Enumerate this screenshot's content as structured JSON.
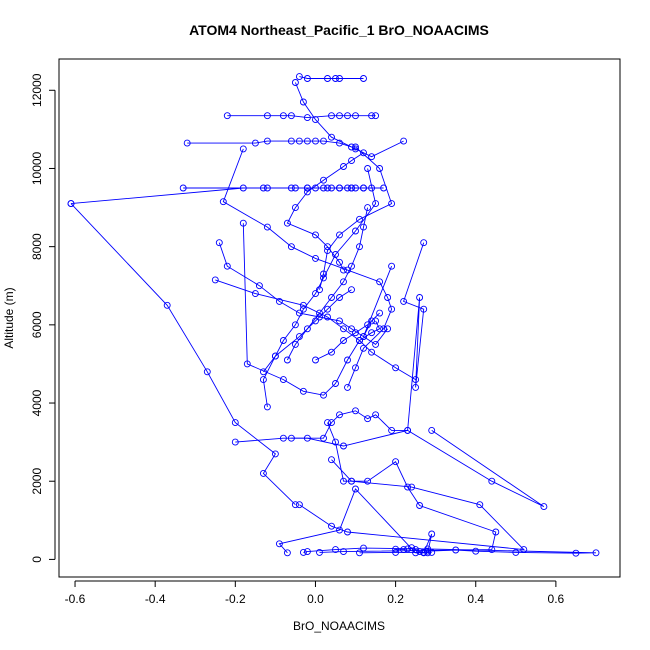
{
  "chart_data": {
    "type": "line",
    "title": "ATOM4 Northeast_Pacific_1 BrO_NOAACIMS",
    "xlabel": "BrO_NOAACIMS",
    "ylabel": "Altitude (m)",
    "xlim": [
      -0.64,
      0.76
    ],
    "ylim": [
      -450,
      12800
    ],
    "xticks": [
      -0.6,
      -0.4,
      -0.2,
      0.0,
      0.2,
      0.4,
      0.6
    ],
    "xtick_labels": [
      "-0.6",
      "-0.4",
      "-0.2",
      "0.0",
      "0.2",
      "0.4",
      "0.6"
    ],
    "yticks": [
      0,
      2000,
      4000,
      6000,
      8000,
      10000,
      12000
    ],
    "ytick_labels": [
      "0",
      "2000",
      "4000",
      "6000",
      "8000",
      "10000",
      "12000"
    ],
    "grid": false,
    "legend": "none",
    "series_color": "#0000ff",
    "series": [
      {
        "x": [
          -0.03,
          -0.02,
          0.05,
          0.12,
          0.28,
          0.7,
          0.65,
          0.5,
          0.4,
          0.35,
          0.28
        ],
        "y": [
          180,
          200,
          250,
          290,
          270,
          170,
          160,
          180,
          210,
          240,
          210
        ]
      },
      {
        "x": [
          0.11,
          0.2,
          0.29,
          0.27,
          0.27,
          0.26,
          0.25,
          0.24,
          0.23,
          0.22,
          0.2
        ],
        "y": [
          170,
          180,
          180,
          180,
          180,
          200,
          250,
          300,
          270,
          250,
          260
        ]
      },
      {
        "x": [
          -0.07,
          -0.09,
          0.06,
          0.1,
          0.25,
          0.27,
          0.29,
          0.28
        ],
        "y": [
          170,
          400,
          750,
          1800,
          170,
          170,
          650,
          170
        ]
      },
      {
        "x": [
          0.01,
          0.07,
          0.44,
          0.45,
          0.26,
          0.23,
          0.2,
          0.13,
          0.09,
          0.07,
          0.05,
          0.03
        ],
        "y": [
          180,
          200,
          250,
          700,
          1380,
          1850,
          2500,
          2000,
          2000,
          2000,
          3000,
          3500
        ]
      },
      {
        "x": [
          -0.04,
          0.04,
          0.08,
          0.52,
          0.41,
          0.24,
          0.09,
          0.04
        ],
        "y": [
          1400,
          850,
          700,
          250,
          1400,
          1850,
          2000,
          2550
        ]
      },
      {
        "x": [
          -0.05,
          -0.13,
          -0.1,
          -0.2,
          -0.27,
          -0.37,
          -0.61
        ],
        "y": [
          1400,
          2200,
          2700,
          3500,
          4800,
          6500,
          9100
        ]
      },
      {
        "x": [
          0.29,
          0.57,
          0.44,
          0.23,
          0.07,
          -0.02,
          -0.08,
          -0.2
        ],
        "y": [
          3300,
          1350,
          2000,
          3300,
          2900,
          3100,
          3100,
          3000
        ]
      },
      {
        "x": [
          -0.06,
          0.02,
          0.04,
          0.06,
          0.1,
          0.13,
          0.15,
          0.19,
          0.23,
          0.26,
          0.25,
          0.27,
          0.22,
          0.27
        ],
        "y": [
          3100,
          3100,
          3500,
          3700,
          3800,
          3600,
          3700,
          3300,
          3300,
          6700,
          4400,
          6400,
          6600,
          8100
        ]
      },
      {
        "x": [
          -0.61,
          -0.18,
          -0.13,
          -0.05,
          -0.02,
          0.0,
          0.03,
          0.06,
          0.09,
          0.12,
          0.14,
          0.17,
          0.09
        ],
        "y": [
          9100,
          9500,
          9500,
          9500,
          9500,
          9500,
          9500,
          9500,
          9500,
          9500,
          9500,
          9500,
          9500
        ]
      },
      {
        "x": [
          -0.33,
          -0.12,
          -0.06,
          -0.02,
          0.02,
          0.04,
          0.06,
          0.08,
          0.1,
          0.12
        ],
        "y": [
          9500,
          9500,
          9500,
          9500,
          9500,
          9500,
          9500,
          9500,
          9500,
          9500
        ]
      },
      {
        "x": [
          -0.32,
          -0.15,
          -0.12,
          -0.06,
          -0.04,
          -0.02,
          0.0,
          0.02,
          0.06,
          0.09,
          0.14,
          0.22
        ],
        "y": [
          10650,
          10650,
          10700,
          10700,
          10700,
          10700,
          10700,
          10700,
          10650,
          10550,
          10300,
          10700
        ]
      },
      {
        "x": [
          -0.22,
          -0.12,
          -0.08,
          -0.06,
          -0.02,
          0.04,
          0.06,
          0.08,
          0.1,
          0.14,
          0.15
        ],
        "y": [
          11350,
          11350,
          11350,
          11350,
          11300,
          11350,
          11350,
          11350,
          11350,
          11350,
          11350
        ]
      },
      {
        "x": [
          -0.04,
          -0.02,
          0.03,
          0.05,
          0.06,
          0.12
        ],
        "y": [
          12350,
          12300,
          12300,
          12300,
          12300,
          12300
        ]
      },
      {
        "x": [
          -0.05,
          -0.03,
          0.0,
          0.04,
          0.1,
          0.12,
          0.09,
          0.07,
          0.02,
          -0.02,
          -0.05,
          -0.07,
          0.0,
          0.03,
          0.06,
          0.07
        ],
        "y": [
          12200,
          11700,
          11250,
          10800,
          10500,
          10400,
          10200,
          10050,
          9700,
          9400,
          9000,
          8600,
          8300,
          8000,
          7600,
          7400
        ]
      },
      {
        "x": [
          -0.18,
          -0.23,
          -0.12,
          -0.06,
          0.0,
          0.08,
          0.16,
          0.18,
          0.19,
          0.17,
          0.12,
          0.1,
          0.08
        ],
        "y": [
          10500,
          9150,
          8500,
          8000,
          7700,
          7400,
          7100,
          6700,
          6400,
          5900,
          5400,
          4900,
          4400
        ]
      },
      {
        "x": [
          -0.18,
          -0.17,
          -0.08,
          -0.03,
          0.02,
          0.05,
          0.08,
          0.11,
          0.14,
          0.16,
          0.15
        ],
        "y": [
          8600,
          5000,
          4600,
          4300,
          4200,
          4500,
          5100,
          5600,
          5800,
          5900,
          6100
        ]
      },
      {
        "x": [
          -0.24,
          -0.22,
          -0.14,
          -0.09,
          -0.04,
          0.01,
          0.06,
          0.09,
          0.12,
          0.15,
          0.18
        ],
        "y": [
          8100,
          7500,
          7000,
          6600,
          6300,
          6200,
          6100,
          5900,
          5700,
          5500,
          5900
        ]
      },
      {
        "x": [
          -0.25,
          -0.15,
          -0.03,
          0.03,
          0.07,
          0.11,
          0.14,
          0.2,
          0.25
        ],
        "y": [
          7150,
          6800,
          6500,
          6200,
          5900,
          5600,
          5300,
          4900,
          4600
        ]
      },
      {
        "x": [
          0.13,
          0.15,
          0.1,
          0.05,
          0.02,
          0.0,
          -0.03,
          -0.05,
          -0.08,
          -0.1,
          -0.13
        ],
        "y": [
          10000,
          9100,
          8400,
          7800,
          7200,
          6800,
          6400,
          6000,
          5600,
          5200,
          4800
        ]
      },
      {
        "x": [
          0.1,
          0.16,
          0.19,
          0.11,
          0.06,
          0.03,
          0.02,
          0.01
        ],
        "y": [
          10550,
          10000,
          9100,
          8700,
          8300,
          7900,
          7300,
          6900
        ]
      },
      {
        "x": [
          0.13,
          0.12,
          0.11,
          0.09,
          0.07,
          0.04,
          0.01,
          -0.02,
          -0.05,
          -0.07
        ],
        "y": [
          9000,
          8500,
          8000,
          7500,
          7100,
          6700,
          6300,
          5900,
          5500,
          5100
        ]
      },
      {
        "x": [
          0.0,
          0.04,
          0.07,
          0.1,
          0.13,
          0.16,
          0.14,
          0.12,
          0.19
        ],
        "y": [
          5100,
          5300,
          5600,
          5800,
          6000,
          6300,
          6100,
          5700,
          7500
        ]
      },
      {
        "x": [
          -0.12,
          -0.13,
          -0.1,
          -0.04,
          0.0,
          0.03,
          0.06,
          0.09
        ],
        "y": [
          3900,
          4600,
          5200,
          5700,
          6100,
          6400,
          6700,
          6900
        ]
      }
    ]
  }
}
